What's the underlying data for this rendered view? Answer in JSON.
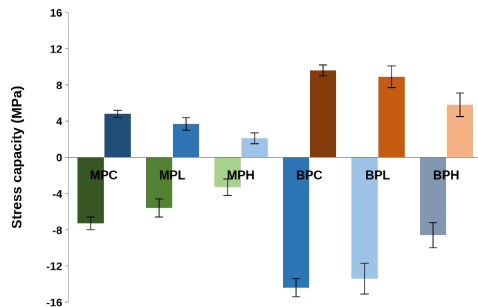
{
  "chart_data": {
    "type": "bar",
    "title": "",
    "xlabel": "",
    "ylabel": "Stress capacity (MPa)",
    "ylim": [
      -16,
      16
    ],
    "yticks": [
      16,
      12,
      8,
      4,
      0,
      -4,
      -8,
      -12,
      -16
    ],
    "grid": false,
    "legend": "none",
    "categories": [
      "MPC",
      "MPL",
      "MPH",
      "BPC",
      "BPL",
      "BPH"
    ],
    "series": [
      {
        "values": [
          -7.3,
          -5.6,
          -3.3,
          -14.4,
          -13.4,
          -8.6
        ],
        "error": [
          0.7,
          1.0,
          0.9,
          1.0,
          1.7,
          1.4
        ],
        "colors": [
          "#375623",
          "#548235",
          "#a9d18e",
          "#2e75b6",
          "#9dc3e6",
          "#8497b0"
        ]
      },
      {
        "values": [
          4.8,
          3.7,
          2.1,
          9.6,
          8.9,
          5.8
        ],
        "error": [
          0.4,
          0.7,
          0.6,
          0.6,
          1.2,
          1.3
        ],
        "colors": [
          "#1f4e79",
          "#2e75b6",
          "#9dc3e6",
          "#843c0c",
          "#c55a11",
          "#f4b183"
        ]
      }
    ]
  }
}
